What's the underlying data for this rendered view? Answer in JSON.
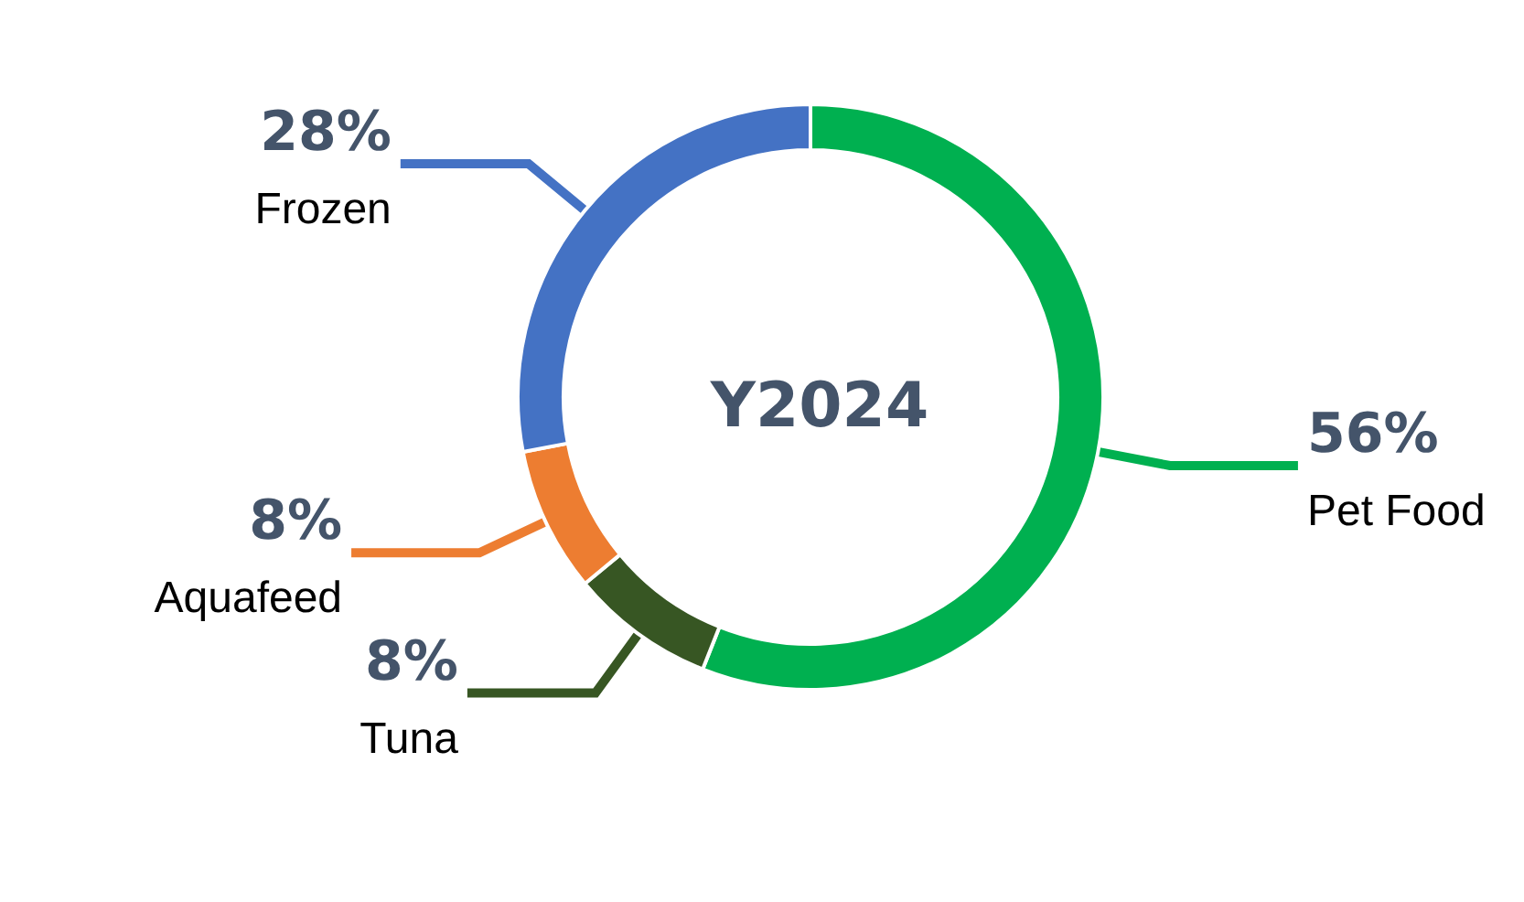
{
  "chart_data": {
    "type": "donut",
    "title": "Y2024",
    "categories": [
      "Pet Food",
      "Tuna",
      "Aquafeed",
      "Frozen"
    ],
    "values": [
      56,
      8,
      8,
      28
    ],
    "value_labels": [
      "56%",
      "8%",
      "8%",
      "28%"
    ],
    "colors": [
      "#00b050",
      "#375623",
      "#ed7d31",
      "#4472c4"
    ],
    "legend": false
  }
}
